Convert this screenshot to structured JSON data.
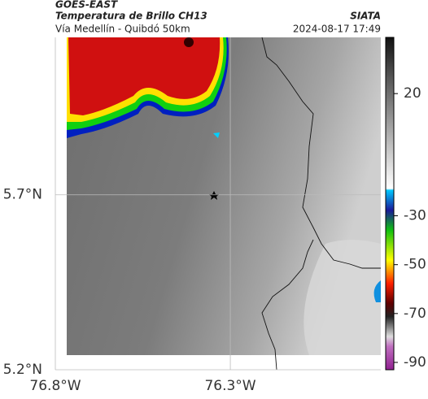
{
  "header": {
    "source": "GOES-EAST",
    "title": "Temperatura de Brillo CH13",
    "subtitle": "Vía Medellín - Quibdó 50km",
    "credit": "SIATA",
    "datetime": "2024-08-17 17:49"
  },
  "map": {
    "xlim": [
      -76.8,
      -75.87
    ],
    "ylim": [
      5.2,
      6.15
    ],
    "xticks": [
      {
        "value": -76.8,
        "label": "76.8°W"
      },
      {
        "value": -76.3,
        "label": "76.3°W"
      }
    ],
    "yticks": [
      {
        "value": 5.7,
        "label": "5.7°N"
      },
      {
        "value": 5.2,
        "label": "5.2°N"
      }
    ],
    "grid": true
  },
  "colorbar": {
    "lim": [
      -93,
      43
    ],
    "ticks": [
      20,
      -30,
      -50,
      -70,
      -90
    ]
  }
}
